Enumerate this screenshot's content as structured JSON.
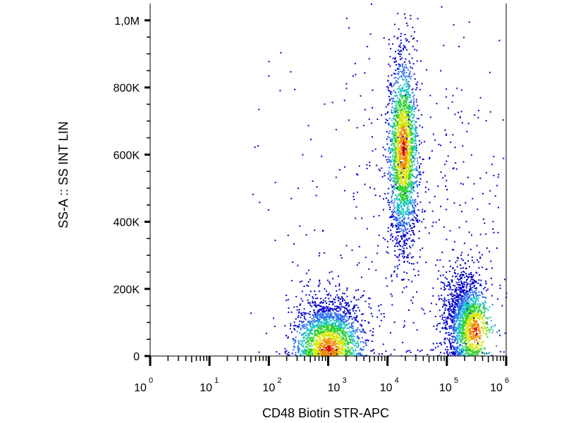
{
  "chart_data": {
    "type": "scatter",
    "title": "",
    "xlabel": "CD48 Biotin STR-APC",
    "ylabel": "SS-A :: SS INT LIN",
    "x_scale": "log",
    "xlim": [
      1,
      1000000
    ],
    "ylim": [
      0,
      1050000
    ],
    "grid": false,
    "legend": "none",
    "colormap": [
      "#0000cc",
      "#2a6df4",
      "#17c2c2",
      "#2fd12f",
      "#d8e60c",
      "#f08a0c",
      "#e00000"
    ],
    "x_ticks": [
      {
        "base": "10",
        "exp": "0",
        "value": 1
      },
      {
        "base": "10",
        "exp": "1",
        "value": 10
      },
      {
        "base": "10",
        "exp": "2",
        "value": 100
      },
      {
        "base": "10",
        "exp": "3",
        "value": 1000
      },
      {
        "base": "10",
        "exp": "4",
        "value": 10000
      },
      {
        "base": "10",
        "exp": "5",
        "value": 100000
      },
      {
        "base": "10",
        "exp": "6",
        "value": 1000000
      }
    ],
    "y_ticks": [
      {
        "label": "0",
        "value": 0
      },
      {
        "label": "200K",
        "value": 200000
      },
      {
        "label": "400K",
        "value": 400000
      },
      {
        "label": "600K",
        "value": 600000
      },
      {
        "label": "800K",
        "value": 800000
      },
      {
        "label": "1,0M",
        "value": 1000000
      }
    ],
    "populations": [
      {
        "center_x": 1000,
        "center_y": 60000,
        "peak_x": 1000,
        "peak_y": 25000,
        "spread_x_decades": 0.28,
        "spread_y": 60000,
        "events": 1800
      },
      {
        "center_x": 18000,
        "center_y": 600000,
        "peak_x": 18000,
        "peak_y": 620000,
        "spread_x_decades": 0.12,
        "spread_y": 140000,
        "events": 2200
      },
      {
        "center_x": 200000,
        "center_y": 120000,
        "peak_x": 300000,
        "peak_y": 75000,
        "spread_x_decades": 0.18,
        "spread_y": 70000,
        "events": 1600
      },
      {
        "center_x": 30000,
        "center_y": 400000,
        "peak_x": 30000,
        "peak_y": 400000,
        "spread_x_decades": 1.1,
        "spread_y": 300000,
        "events": 500
      }
    ]
  }
}
